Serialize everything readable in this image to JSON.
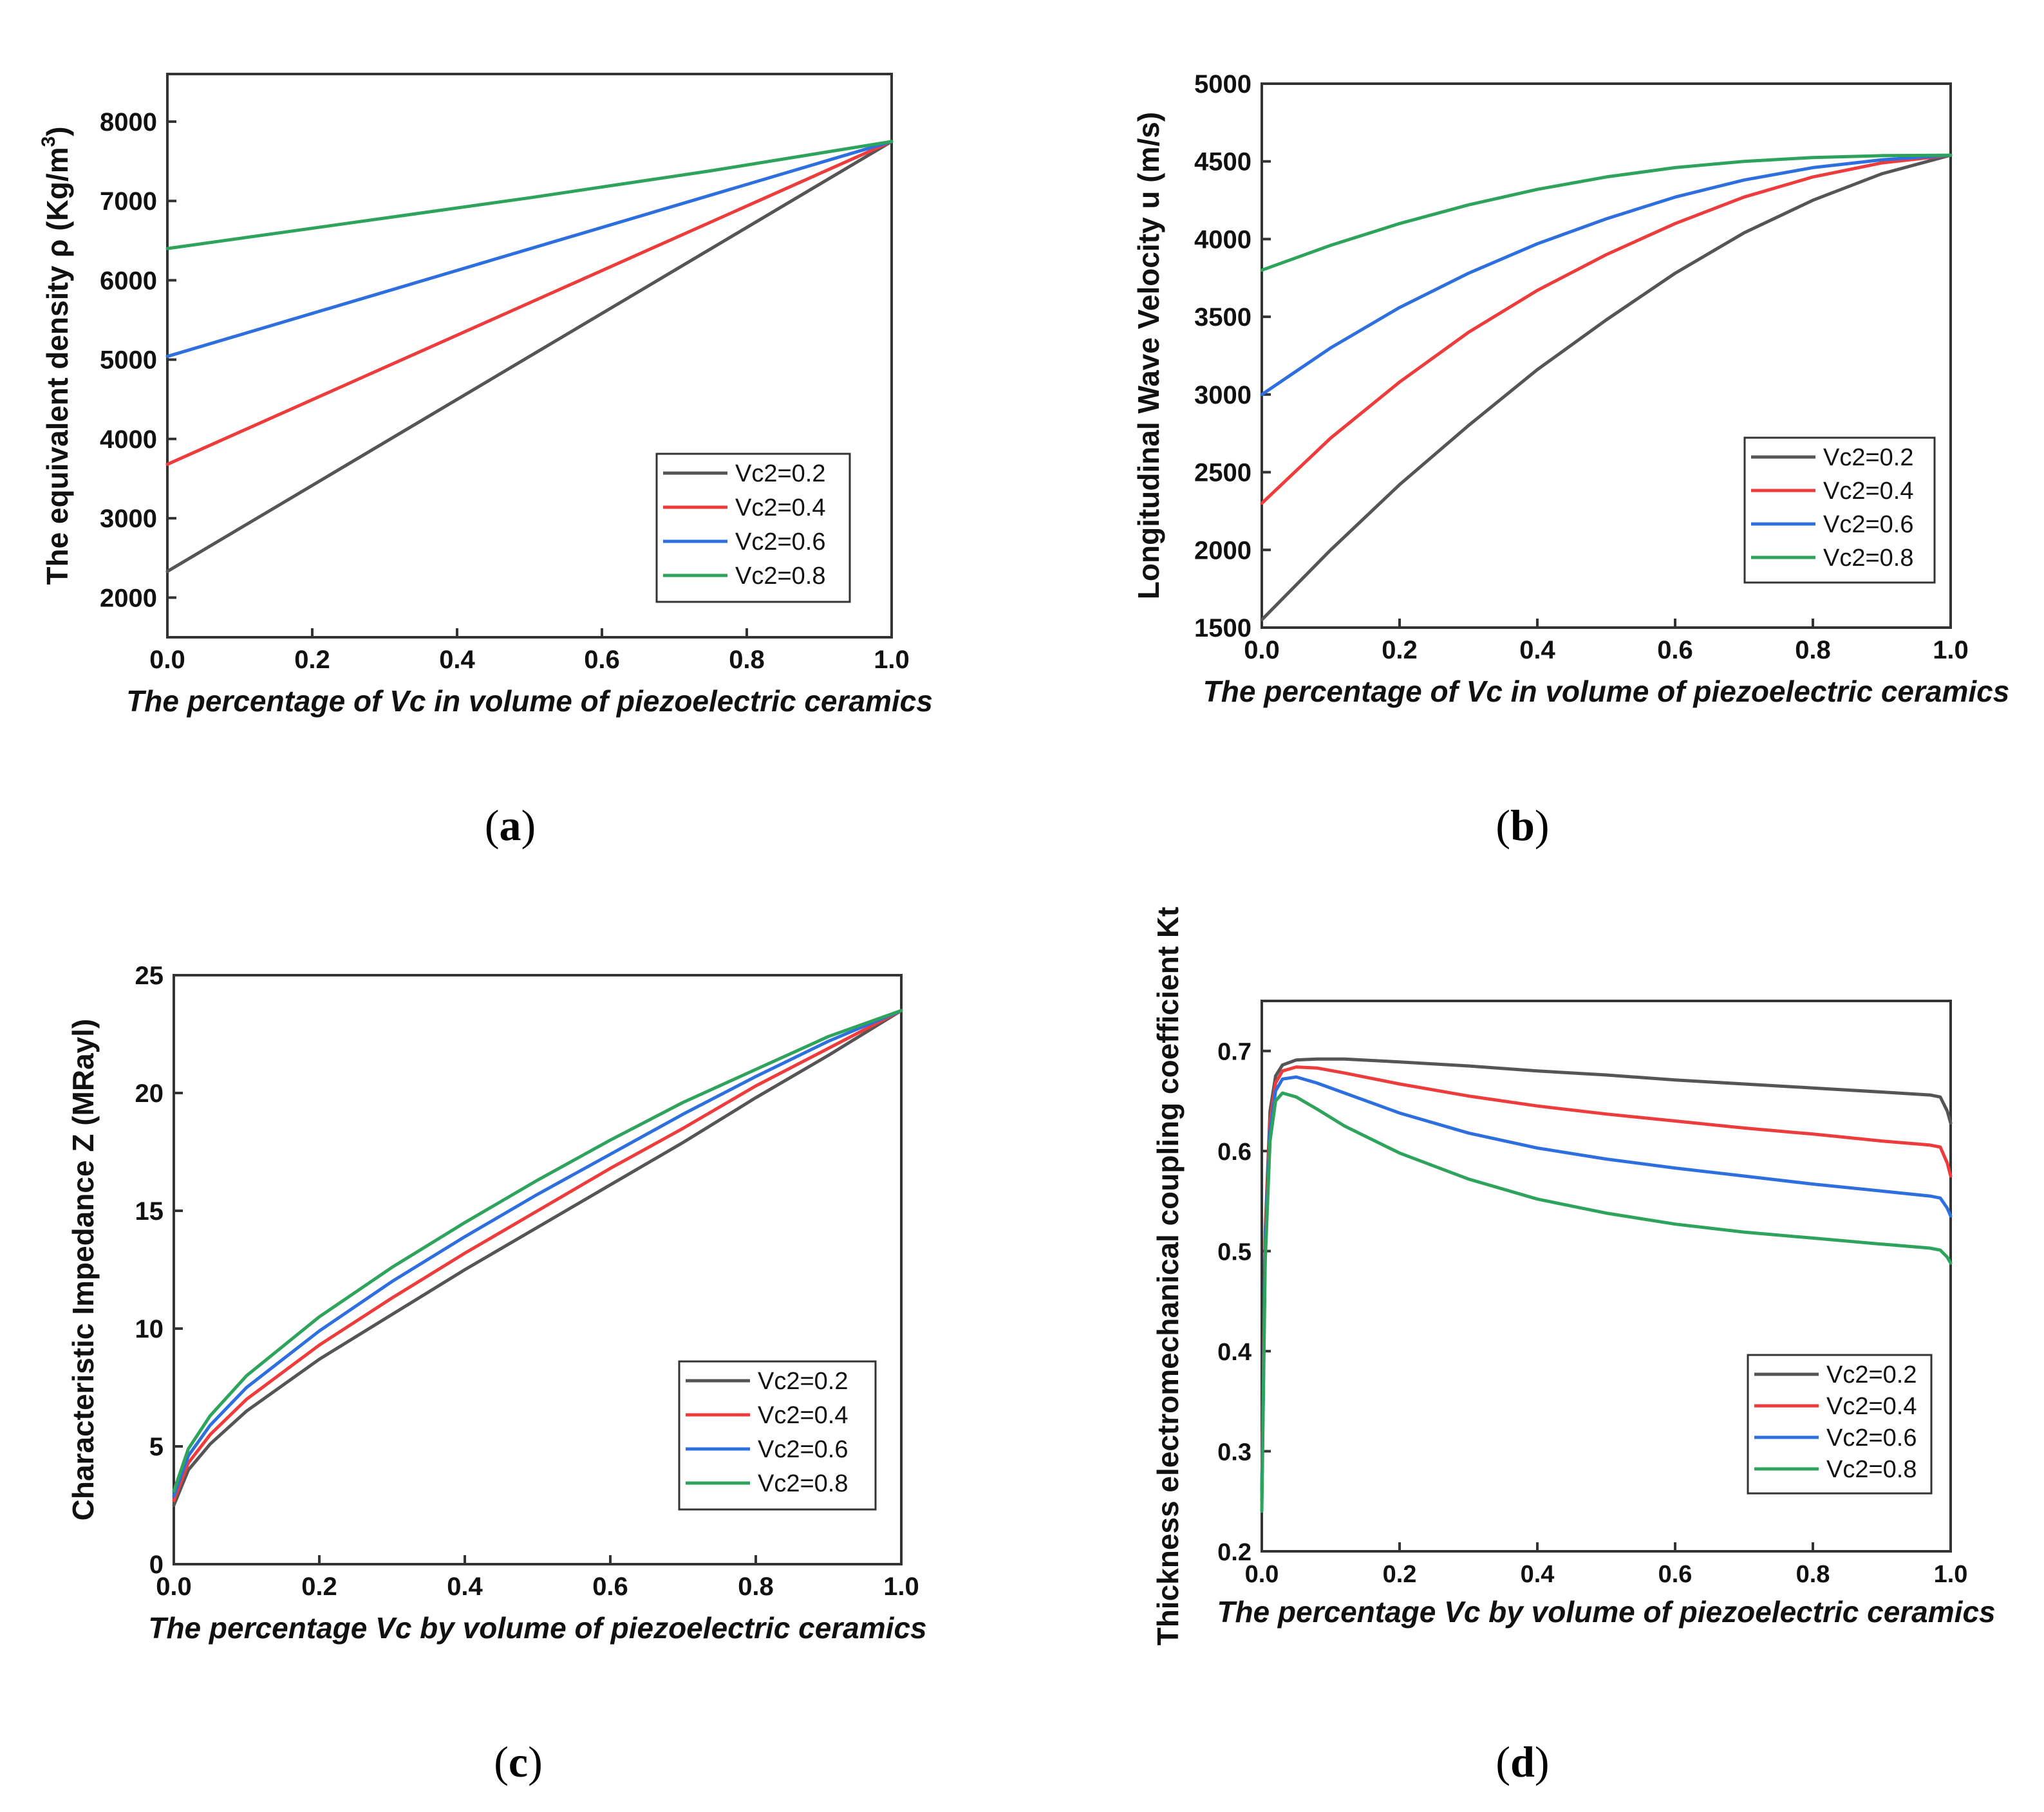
{
  "figure_labels": [
    "a",
    "b",
    "c",
    "d"
  ],
  "colors": {
    "Vc2=0.2": "#555555",
    "Vc2=0.4": "#ee3b3b",
    "Vc2=0.6": "#2e6fe0",
    "Vc2=0.8": "#2ea35c"
  },
  "chart_data": [
    {
      "id": "a",
      "type": "line",
      "caption": "a",
      "xlabel": "The percentage of Vc in volume of piezoelectric ceramics",
      "ylabel": "The equivalent density  ρ (Kg/m",
      "ylabel_sup": "3",
      "ylabel_end": ")",
      "xlim": [
        0,
        1
      ],
      "ylim": [
        1500,
        8600
      ],
      "xticks": [
        "0.0",
        "0.2",
        "0.4",
        "0.6",
        "0.8",
        "1.0"
      ],
      "yticks": [
        "2000",
        "3000",
        "4000",
        "5000",
        "6000",
        "7000",
        "8000"
      ],
      "legend_position": "lower-right",
      "series": [
        {
          "name": "Vc2=0.2",
          "x": [
            0,
            0.25,
            0.5,
            0.75,
            1.0
          ],
          "y": [
            2330,
            3685,
            5040,
            6395,
            7750
          ]
        },
        {
          "name": "Vc2=0.4",
          "x": [
            0,
            0.25,
            0.5,
            0.75,
            1.0
          ],
          "y": [
            3680,
            4698,
            5715,
            6733,
            7750
          ]
        },
        {
          "name": "Vc2=0.6",
          "x": [
            0,
            0.25,
            0.5,
            0.75,
            1.0
          ],
          "y": [
            5040,
            5718,
            6395,
            7073,
            7750
          ]
        },
        {
          "name": "Vc2=0.8",
          "x": [
            0,
            0.25,
            0.5,
            0.75,
            1.0
          ],
          "y": [
            6400,
            6720,
            7040,
            7380,
            7750
          ]
        }
      ]
    },
    {
      "id": "b",
      "type": "line",
      "caption": "b",
      "xlabel": "The percentage of Vc in volume of piezoelectric ceramics",
      "ylabel": "Longitudinal Wave Velocity u (m/s)",
      "xlim": [
        0,
        1
      ],
      "ylim": [
        1500,
        5000
      ],
      "xticks": [
        "0.0",
        "0.2",
        "0.4",
        "0.6",
        "0.8",
        "1.0"
      ],
      "yticks": [
        "1500",
        "2000",
        "2500",
        "3000",
        "3500",
        "4000",
        "4500",
        "5000"
      ],
      "legend_position": "lower-right",
      "series": [
        {
          "name": "Vc2=0.2",
          "x": [
            0,
            0.1,
            0.2,
            0.3,
            0.4,
            0.5,
            0.6,
            0.7,
            0.8,
            0.9,
            1.0
          ],
          "y": [
            1550,
            2000,
            2420,
            2800,
            3160,
            3480,
            3780,
            4040,
            4250,
            4420,
            4540
          ]
        },
        {
          "name": "Vc2=0.4",
          "x": [
            0,
            0.1,
            0.2,
            0.3,
            0.4,
            0.5,
            0.6,
            0.7,
            0.8,
            0.9,
            1.0
          ],
          "y": [
            2300,
            2720,
            3080,
            3400,
            3670,
            3900,
            4100,
            4270,
            4400,
            4490,
            4540
          ]
        },
        {
          "name": "Vc2=0.6",
          "x": [
            0,
            0.1,
            0.2,
            0.3,
            0.4,
            0.5,
            0.6,
            0.7,
            0.8,
            0.9,
            1.0
          ],
          "y": [
            3000,
            3300,
            3560,
            3780,
            3970,
            4130,
            4270,
            4380,
            4460,
            4510,
            4540
          ]
        },
        {
          "name": "Vc2=0.8",
          "x": [
            0,
            0.1,
            0.2,
            0.3,
            0.4,
            0.5,
            0.6,
            0.7,
            0.8,
            0.9,
            1.0
          ],
          "y": [
            3800,
            3960,
            4100,
            4220,
            4320,
            4400,
            4460,
            4500,
            4525,
            4537,
            4540
          ]
        }
      ]
    },
    {
      "id": "c",
      "type": "line",
      "caption": "c",
      "xlabel": "The percentage Vc by volume of piezoelectric ceramics",
      "ylabel": "Characteristic Impedance Z (MRayl)",
      "xlim": [
        0,
        1
      ],
      "ylim": [
        0,
        25
      ],
      "xticks": [
        "0.0",
        "0.2",
        "0.4",
        "0.6",
        "0.8",
        "1.0"
      ],
      "yticks": [
        "0",
        "5",
        "10",
        "15",
        "20",
        "25"
      ],
      "legend_position": "lower-right",
      "series": [
        {
          "name": "Vc2=0.2",
          "x": [
            0,
            0.02,
            0.05,
            0.1,
            0.2,
            0.3,
            0.4,
            0.5,
            0.6,
            0.7,
            0.8,
            0.9,
            1.0
          ],
          "y": [
            2.5,
            4.0,
            5.1,
            6.5,
            8.7,
            10.6,
            12.5,
            14.3,
            16.1,
            17.9,
            19.8,
            21.6,
            23.5
          ]
        },
        {
          "name": "Vc2=0.4",
          "x": [
            0,
            0.02,
            0.05,
            0.1,
            0.2,
            0.3,
            0.4,
            0.5,
            0.6,
            0.7,
            0.8,
            0.9,
            1.0
          ],
          "y": [
            2.7,
            4.3,
            5.5,
            7.0,
            9.3,
            11.3,
            13.2,
            15.0,
            16.8,
            18.5,
            20.3,
            21.9,
            23.5
          ]
        },
        {
          "name": "Vc2=0.6",
          "x": [
            0,
            0.02,
            0.05,
            0.1,
            0.2,
            0.3,
            0.4,
            0.5,
            0.6,
            0.7,
            0.8,
            0.9,
            1.0
          ],
          "y": [
            2.9,
            4.6,
            5.9,
            7.5,
            9.9,
            12.0,
            13.9,
            15.7,
            17.4,
            19.1,
            20.7,
            22.2,
            23.5
          ]
        },
        {
          "name": "Vc2=0.8",
          "x": [
            0,
            0.02,
            0.05,
            0.1,
            0.2,
            0.3,
            0.4,
            0.5,
            0.6,
            0.7,
            0.8,
            0.9,
            1.0
          ],
          "y": [
            3.1,
            4.9,
            6.3,
            8.0,
            10.5,
            12.6,
            14.5,
            16.3,
            18.0,
            19.6,
            21.0,
            22.4,
            23.5
          ]
        }
      ]
    },
    {
      "id": "d",
      "type": "line",
      "caption": "d",
      "xlabel": "The percentage Vc by volume of piezoelectric ceramics",
      "ylabel": "Thickness electromechanical coupling coefficient Kt",
      "xlim": [
        0,
        1
      ],
      "ylim": [
        0.2,
        0.75
      ],
      "xticks": [
        "0.0",
        "0.2",
        "0.4",
        "0.6",
        "0.8",
        "1.0"
      ],
      "yticks": [
        "0.2",
        "0.3",
        "0.4",
        "0.5",
        "0.6",
        "0.7"
      ],
      "legend_position": "lower-right",
      "series": [
        {
          "name": "Vc2=0.2",
          "x": [
            0.0,
            0.005,
            0.012,
            0.02,
            0.03,
            0.05,
            0.08,
            0.12,
            0.2,
            0.3,
            0.4,
            0.5,
            0.6,
            0.7,
            0.8,
            0.9,
            0.97,
            0.985,
            0.995,
            1.0
          ],
          "y": [
            0.26,
            0.52,
            0.64,
            0.675,
            0.686,
            0.691,
            0.692,
            0.692,
            0.689,
            0.685,
            0.68,
            0.676,
            0.671,
            0.667,
            0.663,
            0.659,
            0.656,
            0.654,
            0.64,
            0.628
          ]
        },
        {
          "name": "Vc2=0.4",
          "x": [
            0.0,
            0.005,
            0.012,
            0.02,
            0.03,
            0.05,
            0.08,
            0.12,
            0.2,
            0.3,
            0.4,
            0.5,
            0.6,
            0.7,
            0.8,
            0.9,
            0.97,
            0.985,
            0.995,
            1.0
          ],
          "y": [
            0.26,
            0.51,
            0.63,
            0.668,
            0.68,
            0.684,
            0.683,
            0.678,
            0.667,
            0.655,
            0.645,
            0.637,
            0.63,
            0.623,
            0.617,
            0.61,
            0.606,
            0.604,
            0.588,
            0.575
          ]
        },
        {
          "name": "Vc2=0.6",
          "x": [
            0.0,
            0.005,
            0.012,
            0.02,
            0.03,
            0.05,
            0.08,
            0.12,
            0.2,
            0.3,
            0.4,
            0.5,
            0.6,
            0.7,
            0.8,
            0.9,
            0.97,
            0.985,
            0.995,
            1.0
          ],
          "y": [
            0.25,
            0.5,
            0.62,
            0.66,
            0.672,
            0.674,
            0.668,
            0.658,
            0.638,
            0.618,
            0.603,
            0.592,
            0.583,
            0.575,
            0.567,
            0.56,
            0.555,
            0.553,
            0.543,
            0.535
          ]
        },
        {
          "name": "Vc2=0.8",
          "x": [
            0.0,
            0.005,
            0.012,
            0.02,
            0.03,
            0.05,
            0.08,
            0.12,
            0.2,
            0.3,
            0.4,
            0.5,
            0.6,
            0.7,
            0.8,
            0.9,
            0.97,
            0.985,
            0.995,
            1.0
          ],
          "y": [
            0.24,
            0.49,
            0.61,
            0.65,
            0.658,
            0.654,
            0.642,
            0.625,
            0.598,
            0.572,
            0.552,
            0.538,
            0.527,
            0.519,
            0.513,
            0.507,
            0.503,
            0.501,
            0.494,
            0.488
          ]
        }
      ]
    }
  ]
}
